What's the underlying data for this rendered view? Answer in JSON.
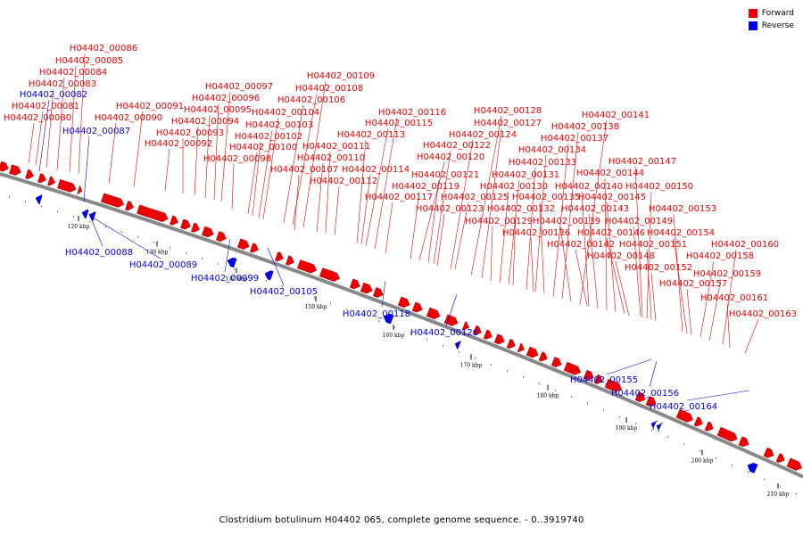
{
  "colors": {
    "forward": "#ee0000",
    "reverse": "#0000ee",
    "backbone": "#888888"
  },
  "legend": {
    "forward_label": "Forward",
    "reverse_label": "Reverse"
  },
  "caption": "Clostridium botulinum H04402 065, complete genome sequence. - 0..3919740",
  "ticks": [
    "120 kbp",
    "130 kbp",
    "140 kbp",
    "150 kbp",
    "160 kbp",
    "170 kbp",
    "180 kbp",
    "190 kbp",
    "200 kbp",
    "210 kbp"
  ],
  "forward_labels": [
    "H04402_00086",
    "H04402_00085",
    "H04402_00084",
    "H04402_00083",
    "H04402_00081",
    "H04402_00080",
    "H04402_00091",
    "H04402_00090",
    "H04402_00097",
    "H04402_00096",
    "H04402_00095",
    "H04402_00094",
    "H04402_00093",
    "H04402_00092",
    "H04402_00109",
    "H04402_00108",
    "H04402_00106",
    "H04402_00104",
    "H04402_00103",
    "H04402_00102",
    "H04402_00100",
    "H04402_00098",
    "H04402_00111",
    "H04402_00110",
    "H04402_00107",
    "H04402_00112",
    "H04402_00116",
    "H04402_00115",
    "H04402_00113",
    "H04402_00114",
    "H04402_00117",
    "H04402_00119",
    "H04402_00121",
    "H04402_00120",
    "H04402_00122",
    "H04402_00124",
    "H04402_00123",
    "H04402_00125",
    "H04402_00128",
    "H04402_00127",
    "H04402_00129",
    "H04402_00130",
    "H04402_00131",
    "H04402_00132",
    "H04402_00133",
    "H04402_00134",
    "H04402_00135",
    "H04402_00136",
    "H04402_00137",
    "H04402_00138",
    "H04402_00139",
    "H04402_00141",
    "H04402_00140",
    "H04402_00142",
    "H04402_00143",
    "H04402_00144",
    "H04402_00145",
    "H04402_00146",
    "H04402_00147",
    "H04402_00148",
    "H04402_00149",
    "H04402_00150",
    "H04402_00151",
    "H04402_00152",
    "H04402_00153",
    "H04402_00154",
    "H04402_00157",
    "H04402_00158",
    "H04402_00159",
    "H04402_00160",
    "H04402_00161",
    "H04402_00163"
  ],
  "reverse_labels": [
    "H04402_00082",
    "H04402_00087",
    "H04402_00088",
    "H04402_00089",
    "H04402_00099",
    "H04402_00105",
    "H04402_00118",
    "H04402_00126",
    "H04402_00155",
    "H04402_00156",
    "H04402_00164"
  ]
}
